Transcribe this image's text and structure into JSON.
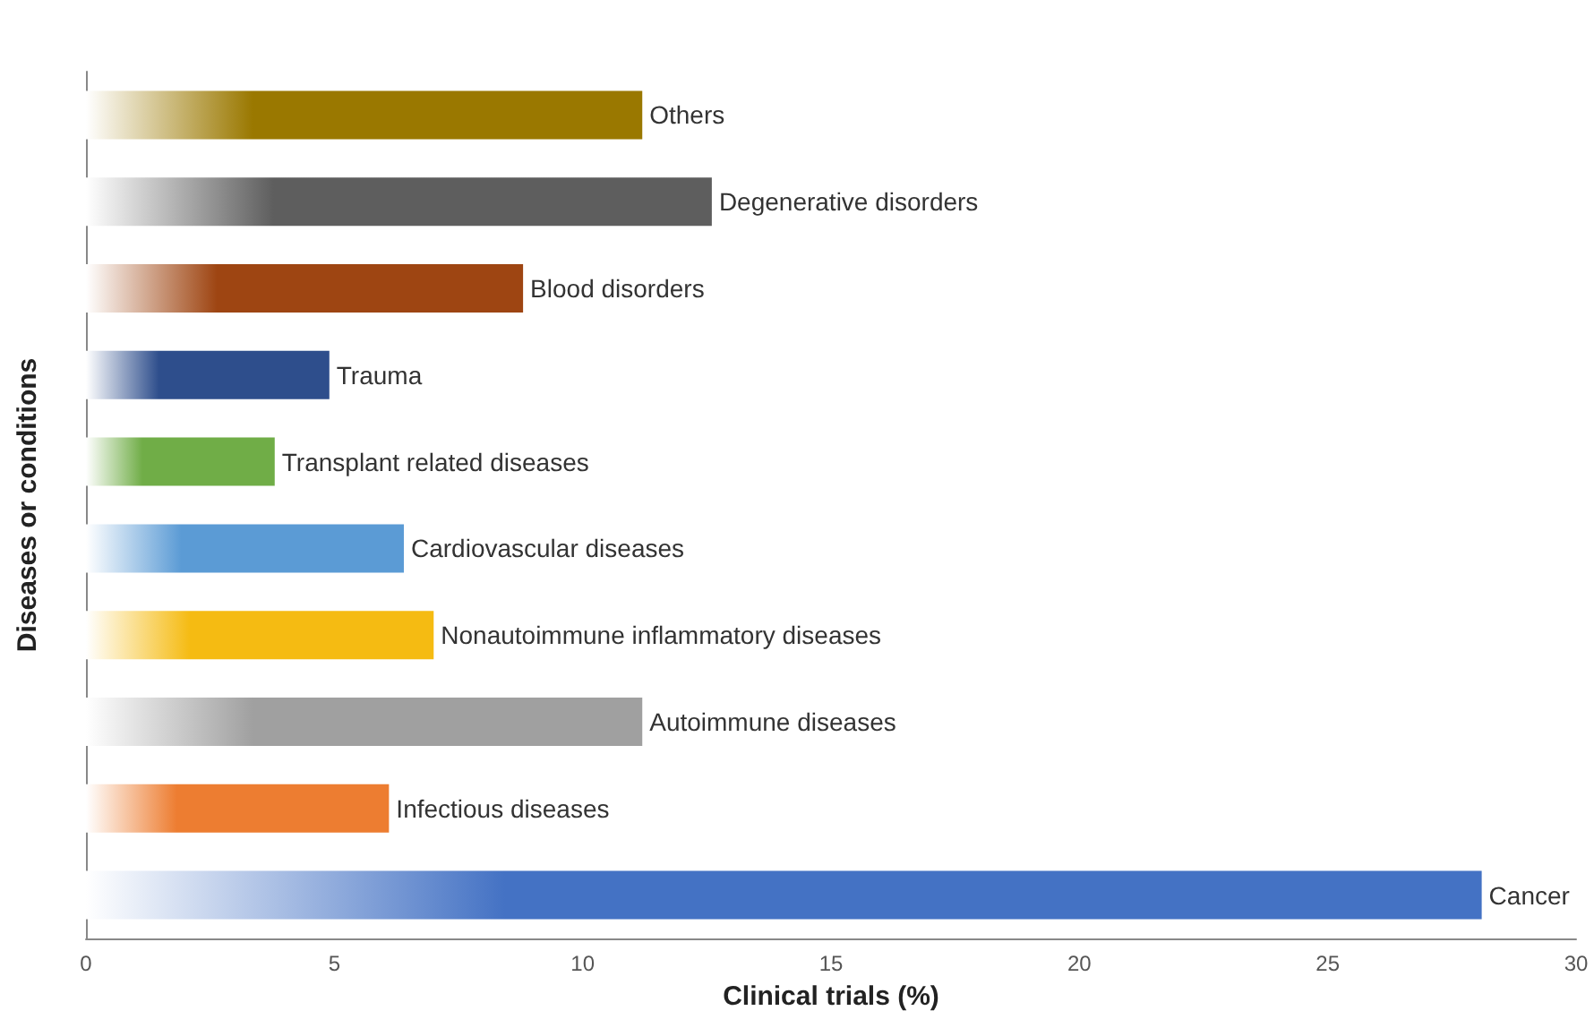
{
  "chart_data": {
    "type": "bar",
    "orientation": "horizontal",
    "xlabel": "Clinical trials (%)",
    "ylabel": "Diseases or conditions",
    "categories": [
      "Others",
      "Degenerative disorders",
      "Blood disorders",
      "Trauma",
      "Transplant related diseases",
      "Cardiovascular diseases",
      "Nonautoimmune inflammatory diseases",
      "Autoimmune diseases",
      "Infectious diseases",
      "Cancer"
    ],
    "values": [
      11.2,
      12.6,
      8.8,
      4.9,
      3.8,
      6.4,
      7.0,
      11.2,
      6.1,
      28.1
    ],
    "colors": [
      "#9a7800",
      "#5e5e5e",
      "#9e4512",
      "#2e4e8c",
      "#70ad47",
      "#5b9bd5",
      "#f5bb12",
      "#a0a0a0",
      "#ed7d31",
      "#4472c4"
    ],
    "xlim": [
      0,
      30
    ],
    "xticks": [
      0,
      5,
      10,
      15,
      20,
      25,
      30
    ],
    "grid": false
  }
}
